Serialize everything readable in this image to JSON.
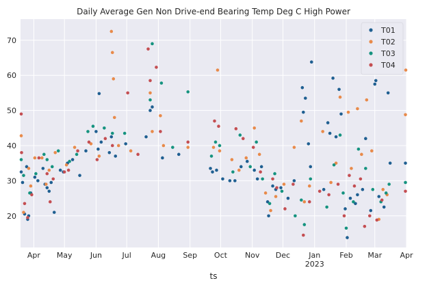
{
  "chart_data": {
    "type": "scatter",
    "title": "Daily Average Gen Non Drive-end Bearing Temp Deg C High Power",
    "xlabel": "ts",
    "ylabel": "",
    "x_type": "date",
    "xlim": [
      "2022-03-19",
      "2023-04-01"
    ],
    "ylim": [
      11,
      76
    ],
    "y_ticks": [
      20,
      30,
      40,
      50,
      60,
      70
    ],
    "x_ticks": [
      {
        "date": "2022-04-01",
        "label": "Apr"
      },
      {
        "date": "2022-05-01",
        "label": "May"
      },
      {
        "date": "2022-06-01",
        "label": "Jun"
      },
      {
        "date": "2022-07-01",
        "label": "Jul"
      },
      {
        "date": "2022-08-01",
        "label": "Aug"
      },
      {
        "date": "2022-09-01",
        "label": "Sep"
      },
      {
        "date": "2022-10-01",
        "label": "Oct"
      },
      {
        "date": "2022-11-01",
        "label": "Nov"
      },
      {
        "date": "2022-12-01",
        "label": "Dec"
      },
      {
        "date": "2023-01-01",
        "label": "Jan",
        "sublabel": "2023"
      },
      {
        "date": "2023-02-01",
        "label": "Feb"
      },
      {
        "date": "2023-03-01",
        "label": "Mar"
      },
      {
        "date": "2023-04-01",
        "label": "Apr"
      }
    ],
    "grid": true,
    "legend_position": "top-right",
    "background_color": "#eaeaf2",
    "series": [
      {
        "name": "T01",
        "color": "#1f5f91",
        "points": [
          [
            "2022-03-19",
            32.5
          ],
          [
            "2022-03-21",
            29.5
          ],
          [
            "2022-03-23",
            20.5
          ],
          [
            "2022-03-25",
            34.0
          ],
          [
            "2022-03-26",
            19.0
          ],
          [
            "2022-03-27",
            20.0
          ],
          [
            "2022-03-29",
            26.5
          ],
          [
            "2022-04-02",
            31.0
          ],
          [
            "2022-04-05",
            30.0
          ],
          [
            "2022-04-10",
            33.5
          ],
          [
            "2022-04-12",
            29.0
          ],
          [
            "2022-04-14",
            28.0
          ],
          [
            "2022-04-16",
            27.0
          ],
          [
            "2022-04-18",
            29.5
          ],
          [
            "2022-04-21",
            21.0
          ],
          [
            "2022-04-27",
            33.0
          ],
          [
            "2022-04-30",
            32.5
          ],
          [
            "2022-05-04",
            35.0
          ],
          [
            "2022-05-09",
            36.0
          ],
          [
            "2022-05-16",
            31.5
          ],
          [
            "2022-05-22",
            38.5
          ],
          [
            "2022-06-01",
            44.0
          ],
          [
            "2022-06-03",
            39.0
          ],
          [
            "2022-06-04",
            54.8
          ],
          [
            "2022-06-06",
            41.0
          ],
          [
            "2022-06-14",
            38.0
          ],
          [
            "2022-06-16",
            42.5
          ],
          [
            "2022-06-20",
            37.0
          ],
          [
            "2022-06-30",
            40.5
          ],
          [
            "2022-07-20",
            42.5
          ],
          [
            "2022-07-24",
            50.0
          ],
          [
            "2022-07-26",
            51.0
          ],
          [
            "2022-08-05",
            36.5
          ],
          [
            "2022-08-21",
            37.5
          ],
          [
            "2022-09-21",
            33.5
          ],
          [
            "2022-09-23",
            32.5
          ],
          [
            "2022-09-27",
            33.0
          ],
          [
            "2022-10-03",
            30.5
          ],
          [
            "2022-10-10",
            30.0
          ],
          [
            "2022-10-15",
            30.0
          ],
          [
            "2022-10-21",
            34.0
          ],
          [
            "2022-10-27",
            35.5
          ],
          [
            "2022-11-03",
            33.0
          ],
          [
            "2022-11-06",
            30.5
          ],
          [
            "2022-11-10",
            34.0
          ],
          [
            "2022-11-16",
            24.0
          ],
          [
            "2022-11-17",
            20.0
          ],
          [
            "2022-11-21",
            28.5
          ],
          [
            "2022-11-24",
            27.5
          ],
          [
            "2022-11-29",
            28.0
          ],
          [
            "2022-12-06",
            25.0
          ],
          [
            "2022-12-12",
            30.0
          ],
          [
            "2022-12-20",
            56.5
          ],
          [
            "2022-12-21",
            49.5
          ],
          [
            "2022-12-23",
            53.5
          ],
          [
            "2022-12-26",
            40.5
          ],
          [
            "2022-12-29",
            63.8
          ],
          [
            "2022-12-28",
            34.0
          ],
          [
            "2023-01-10",
            27.5
          ],
          [
            "2023-01-14",
            46.5
          ],
          [
            "2023-01-16",
            43.5
          ],
          [
            "2023-01-19",
            59.2
          ],
          [
            "2023-01-22",
            42.5
          ],
          [
            "2023-01-25",
            56.0
          ],
          [
            "2023-01-27",
            49.0
          ],
          [
            "2023-01-31",
            22.0
          ],
          [
            "2023-02-02",
            13.8
          ],
          [
            "2023-02-05",
            25.0
          ],
          [
            "2023-02-10",
            23.5
          ],
          [
            "2023-02-12",
            26.0
          ],
          [
            "2023-02-17",
            27.5
          ],
          [
            "2023-02-20",
            42.0
          ],
          [
            "2023-02-25",
            21.5
          ],
          [
            "2023-03-01",
            57.5
          ],
          [
            "2023-03-02",
            58.5
          ],
          [
            "2023-03-05",
            25.5
          ],
          [
            "2023-03-10",
            22.5
          ],
          [
            "2023-03-14",
            55.0
          ],
          [
            "2023-03-16",
            35.0
          ],
          [
            "2023-03-31",
            35.0
          ]
        ]
      },
      {
        "name": "T02",
        "color": "#e88a4a",
        "points": [
          [
            "2022-03-19",
            42.8
          ],
          [
            "2022-03-22",
            21.0
          ],
          [
            "2022-03-27",
            33.5
          ],
          [
            "2022-03-29",
            28.5
          ],
          [
            "2022-04-02",
            36.5
          ],
          [
            "2022-04-09",
            36.5
          ],
          [
            "2022-04-13",
            29.0
          ],
          [
            "2022-04-16",
            33.0
          ],
          [
            "2022-04-22",
            38.0
          ],
          [
            "2022-05-03",
            34.5
          ],
          [
            "2022-05-11",
            39.5
          ],
          [
            "2022-05-27",
            40.5
          ],
          [
            "2022-06-04",
            37.0
          ],
          [
            "2022-06-16",
            72.5
          ],
          [
            "2022-06-17",
            66.5
          ],
          [
            "2022-06-18",
            59.0
          ],
          [
            "2022-06-19",
            48.0
          ],
          [
            "2022-06-23",
            40.0
          ],
          [
            "2022-07-05",
            38.5
          ],
          [
            "2022-07-24",
            55.0
          ],
          [
            "2022-07-26",
            44.0
          ],
          [
            "2022-08-03",
            48.5
          ],
          [
            "2022-08-06",
            40.0
          ],
          [
            "2022-08-30",
            39.5
          ],
          [
            "2022-09-24",
            39.5
          ],
          [
            "2022-09-28",
            61.5
          ],
          [
            "2022-09-30",
            38.5
          ],
          [
            "2022-10-12",
            36.0
          ],
          [
            "2022-10-19",
            33.0
          ],
          [
            "2022-10-26",
            36.5
          ],
          [
            "2022-11-03",
            45.0
          ],
          [
            "2022-11-08",
            37.5
          ],
          [
            "2022-11-14",
            26.5
          ],
          [
            "2022-11-19",
            21.5
          ],
          [
            "2022-11-24",
            25.5
          ],
          [
            "2022-12-02",
            29.0
          ],
          [
            "2022-12-12",
            39.5
          ],
          [
            "2022-12-19",
            47.0
          ],
          [
            "2022-12-22",
            24.0
          ],
          [
            "2022-12-27",
            28.5
          ],
          [
            "2023-01-09",
            44.0
          ],
          [
            "2023-01-17",
            29.5
          ],
          [
            "2023-01-22",
            35.0
          ],
          [
            "2023-01-26",
            53.8
          ],
          [
            "2023-02-03",
            49.5
          ],
          [
            "2023-02-06",
            33.5
          ],
          [
            "2023-02-12",
            50.5
          ],
          [
            "2023-02-16",
            37.5
          ],
          [
            "2023-02-21",
            53.0
          ],
          [
            "2023-02-26",
            38.5
          ],
          [
            "2023-03-05",
            19.0
          ],
          [
            "2023-03-09",
            27.5
          ],
          [
            "2023-03-13",
            26.0
          ],
          [
            "2023-03-31",
            48.8
          ],
          [
            "2023-04-01",
            61.5
          ]
        ]
      },
      {
        "name": "T03",
        "color": "#15937f",
        "points": [
          [
            "2022-03-19",
            36.0
          ],
          [
            "2022-03-22",
            31.5
          ],
          [
            "2022-03-28",
            26.5
          ],
          [
            "2022-04-03",
            32.0
          ],
          [
            "2022-04-11",
            37.5
          ],
          [
            "2022-04-14",
            36.0
          ],
          [
            "2022-04-19",
            34.0
          ],
          [
            "2022-04-25",
            38.5
          ],
          [
            "2022-05-06",
            35.5
          ],
          [
            "2022-05-13",
            37.5
          ],
          [
            "2022-05-24",
            44.0
          ],
          [
            "2022-05-29",
            45.5
          ],
          [
            "2022-06-09",
            45.0
          ],
          [
            "2022-06-17",
            43.5
          ],
          [
            "2022-06-29",
            43.5
          ],
          [
            "2022-07-24",
            53.0
          ],
          [
            "2022-07-26",
            69.0
          ],
          [
            "2022-08-04",
            57.8
          ],
          [
            "2022-08-15",
            39.5
          ],
          [
            "2022-08-30",
            55.3
          ],
          [
            "2022-09-22",
            37.0
          ],
          [
            "2022-09-26",
            41.0
          ],
          [
            "2022-09-30",
            40.0
          ],
          [
            "2022-10-13",
            32.5
          ],
          [
            "2022-10-20",
            43.0
          ],
          [
            "2022-10-30",
            34.0
          ],
          [
            "2022-11-05",
            41.0
          ],
          [
            "2022-11-11",
            30.5
          ],
          [
            "2022-11-18",
            23.5
          ],
          [
            "2022-11-23",
            32.0
          ],
          [
            "2022-11-30",
            27.0
          ],
          [
            "2022-12-13",
            20.0
          ],
          [
            "2022-12-19",
            24.5
          ],
          [
            "2022-12-22",
            17.5
          ],
          [
            "2022-12-28",
            30.5
          ],
          [
            "2023-01-13",
            22.5
          ],
          [
            "2023-01-20",
            34.5
          ],
          [
            "2023-01-26",
            43.0
          ],
          [
            "2023-01-29",
            26.5
          ],
          [
            "2023-02-01",
            16.5
          ],
          [
            "2023-02-08",
            24.0
          ],
          [
            "2023-02-13",
            39.0
          ],
          [
            "2023-02-20",
            33.5
          ],
          [
            "2023-02-27",
            27.5
          ],
          [
            "2023-03-07",
            24.0
          ],
          [
            "2023-03-12",
            26.5
          ],
          [
            "2023-03-15",
            29.0
          ],
          [
            "2023-03-31",
            29.5
          ]
        ]
      },
      {
        "name": "T04",
        "color": "#c44e52",
        "points": [
          [
            "2022-03-19",
            49.0
          ],
          [
            "2022-03-20",
            38.0
          ],
          [
            "2022-03-23",
            23.5
          ],
          [
            "2022-03-26",
            19.5
          ],
          [
            "2022-03-30",
            26.0
          ],
          [
            "2022-04-06",
            36.5
          ],
          [
            "2022-04-14",
            32.0
          ],
          [
            "2022-04-17",
            24.0
          ],
          [
            "2022-04-20",
            30.5
          ],
          [
            "2022-05-01",
            32.5
          ],
          [
            "2022-05-05",
            33.0
          ],
          [
            "2022-05-14",
            38.5
          ],
          [
            "2022-05-25",
            41.0
          ],
          [
            "2022-06-02",
            36.0
          ],
          [
            "2022-06-10",
            42.0
          ],
          [
            "2022-06-17",
            40.0
          ],
          [
            "2022-07-02",
            55.0
          ],
          [
            "2022-07-12",
            37.5
          ],
          [
            "2022-07-22",
            67.5
          ],
          [
            "2022-07-24",
            58.5
          ],
          [
            "2022-07-30",
            62.3
          ],
          [
            "2022-08-03",
            44.0
          ],
          [
            "2022-08-30",
            41.0
          ],
          [
            "2022-09-25",
            47.0
          ],
          [
            "2022-09-29",
            45.5
          ],
          [
            "2022-10-16",
            44.8
          ],
          [
            "2022-10-23",
            42.0
          ],
          [
            "2022-11-02",
            39.5
          ],
          [
            "2022-11-09",
            32.5
          ],
          [
            "2022-11-21",
            30.5
          ],
          [
            "2022-11-25",
            28.0
          ],
          [
            "2022-12-03",
            22.0
          ],
          [
            "2022-12-11",
            29.0
          ],
          [
            "2022-12-21",
            14.5
          ],
          [
            "2022-12-27",
            24.0
          ],
          [
            "2023-01-06",
            27.0
          ],
          [
            "2023-01-15",
            26.0
          ],
          [
            "2023-01-24",
            29.0
          ],
          [
            "2023-01-30",
            20.0
          ],
          [
            "2023-02-04",
            31.5
          ],
          [
            "2023-02-09",
            28.5
          ],
          [
            "2023-02-15",
            30.5
          ],
          [
            "2023-02-19",
            17.0
          ],
          [
            "2023-02-24",
            20.0
          ],
          [
            "2023-03-03",
            18.8
          ],
          [
            "2023-03-08",
            24.5
          ],
          [
            "2023-03-31",
            27.0
          ]
        ]
      }
    ]
  }
}
